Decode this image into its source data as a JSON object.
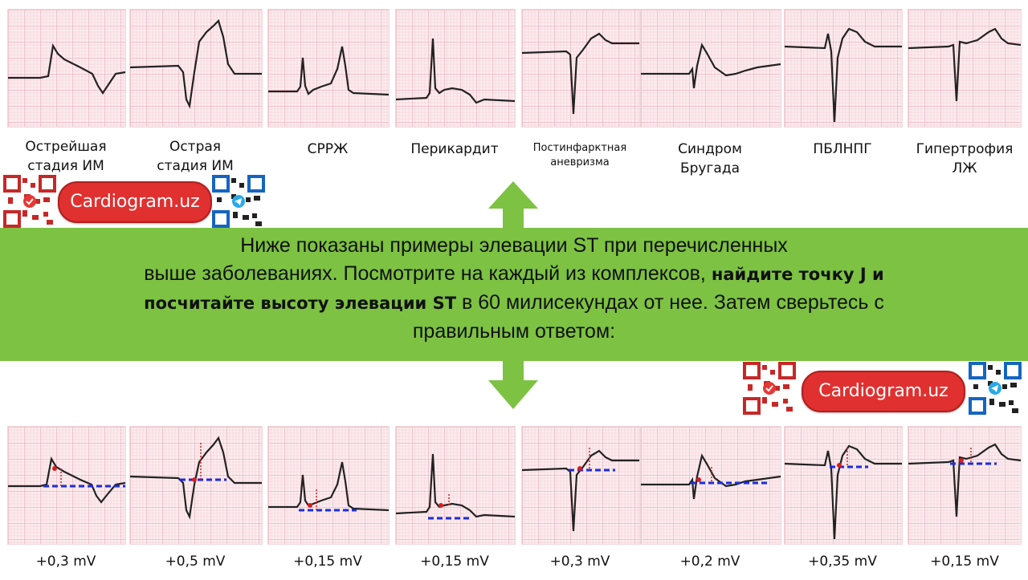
{
  "top_labels": [
    {
      "line1": "Острейшая",
      "line2": "стадия ИМ"
    },
    {
      "line1": "Острая",
      "line2": "стадия ИМ"
    },
    {
      "line1": "СРРЖ",
      "line2": ""
    },
    {
      "line1": "Перикардит",
      "line2": ""
    },
    {
      "line1": "Постинфарктная",
      "line2": "аневризма"
    },
    {
      "line1": "Синдром",
      "line2": "Бругада"
    },
    {
      "line1": "ПБЛНПГ",
      "line2": ""
    },
    {
      "line1": "Гипертрофия",
      "line2": "ЛЖ"
    }
  ],
  "instruction": {
    "part1": "Ниже показаны примеры элевации ST при перечисленных",
    "part2": "выше заболеваниях. Посмотрите на каждый из комплексов, ",
    "bold1": "найдите точку J и",
    "bold2": "посчитайте высоту элевации ST",
    "part3": " в 60 милисекундах от нее. Затем сверьтесь с",
    "part4": "правильным ответом:"
  },
  "brand": {
    "label": "Cardiogram.uz"
  },
  "answers": [
    "+0,3 mV",
    "+0,5 mV",
    "+0,15 mV",
    "+0,15 mV",
    "+0,3 mV",
    "+0,2 mV",
    "+0,35 mV",
    "+0,15 mV"
  ],
  "colors": {
    "banner": "#7dc242",
    "grid": "#f0a8b4",
    "brand": "#e03030",
    "baseline": "#1a2ee0",
    "marker": "#d81e1e"
  }
}
